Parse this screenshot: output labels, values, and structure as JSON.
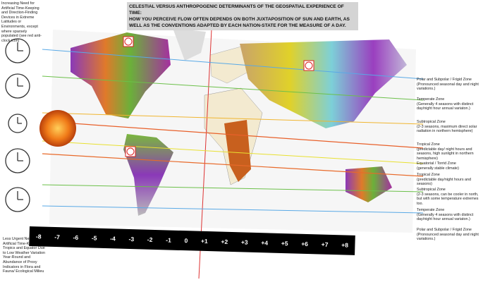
{
  "title": [
    "CELESTIAL VERSUS ANTHROPOGENIC DETERMINANTS OF THE GEOSPATIAL EXPERIENCE OF TIME:",
    "HOW YOU PERCEIVE FLOW OFTEN DEPENDS ON BOTH JUXTAPOSITION OF SUN AND EARTH, AS",
    "WELL AS THE CONVENTIONS ADAPTED BY EACH NATION-STATE FOR THE MEASURE OF A DAY."
  ],
  "notes": {
    "top": "Increasing Need for Artificial Time-Keeping and Direction-Finding Devices in Extreme Latitudes or Environments, except where sparsely populated (see red anti-clock icon)",
    "bottom": "Less Urgent Need for Artificial Time-Keeping in Tropics and Equator Due to Low Weather Variation Year-Round and Abundance of Proxy Indicators in Flora and Fauna/ Ecological Milieu"
  },
  "time_zones": [
    "-8",
    "-7",
    "-6",
    "-5",
    "-4",
    "-3",
    "-2",
    "-1",
    "0",
    "+1",
    "+2",
    "+3",
    "+4",
    "+5",
    "+6",
    "+7",
    "+8"
  ],
  "zones": [
    {
      "name": "Polar and Subpolar / Frigid Zone",
      "description": "(Pronounced seasonal day and night variations.)"
    },
    {
      "name": "Temperate Zone",
      "description": "(Generally 4 seasons with distinct day/night hour annual variaton.)"
    },
    {
      "name": "Subtropical Zone",
      "description": "(2-3 seasons, maximum direct solar radiation in northern hemisphere)"
    },
    {
      "name": "Tropical Zone",
      "description": "(predictable day/ night hours and seasons, high sunlight in northern hemisphere)"
    },
    {
      "name": "Equatorial / Torrid Zone",
      "description": "(generally stable climate)"
    },
    {
      "name": "Tropical Zone",
      "description": "(predictable day/night hours and seasons)"
    },
    {
      "name": "Subtropical Zone",
      "description": "(2-3 seasons, can be cooler in north, but with some temperature extremes too."
    },
    {
      "name": "Temperate Zone",
      "description": "(Generally 4 seasons with distinct day/night hour annual variaton.)"
    },
    {
      "name": "Polar and Subpolar / Frigid Zone",
      "description": "(Pronounced seasonal day and night variations.)"
    }
  ]
}
